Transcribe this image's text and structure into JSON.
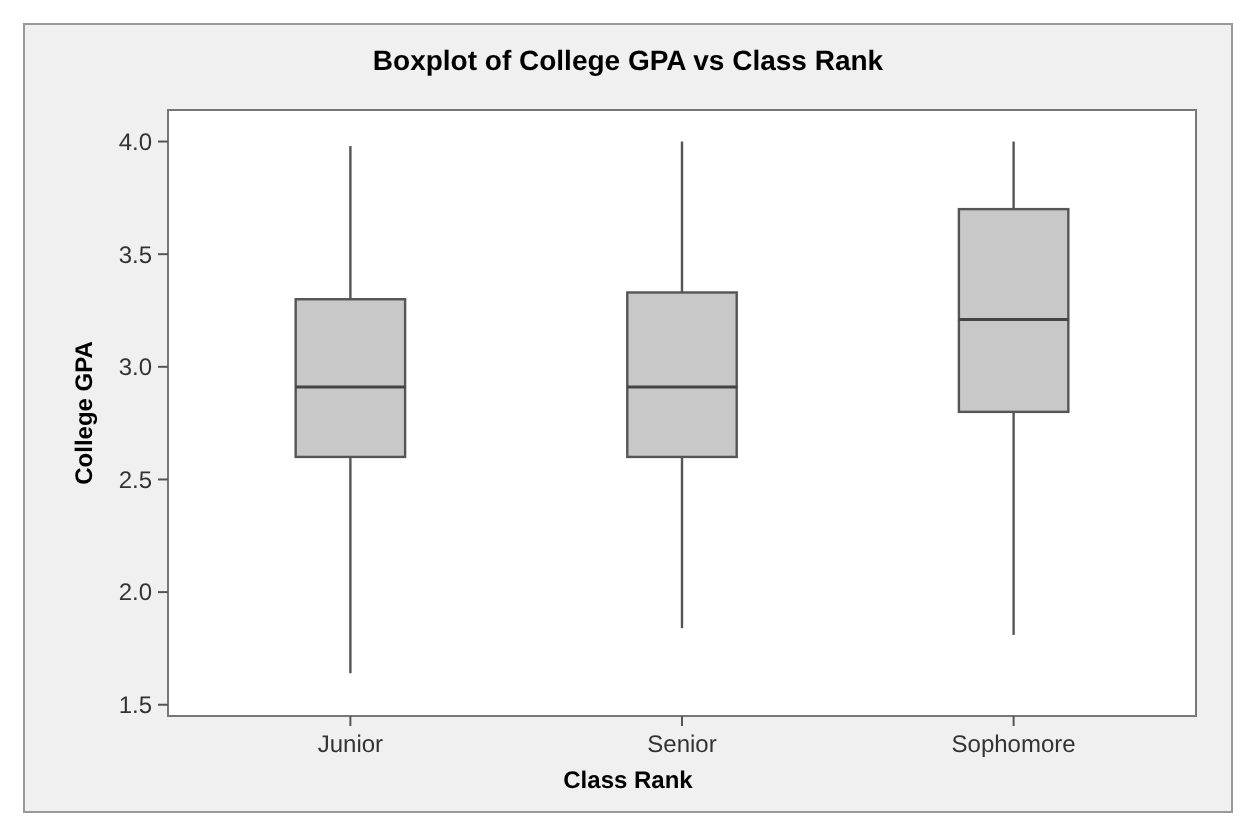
{
  "chart_data": {
    "type": "box",
    "title": "Boxplot of College GPA vs Class Rank",
    "xlabel": "Class Rank",
    "ylabel": "College GPA",
    "categories": [
      "Junior",
      "Senior",
      "Sophomore"
    ],
    "boxes": [
      {
        "low": 1.64,
        "q1": 2.6,
        "median": 2.91,
        "q3": 3.3,
        "high": 3.98
      },
      {
        "low": 1.84,
        "q1": 2.6,
        "median": 2.91,
        "q3": 3.33,
        "high": 4.0
      },
      {
        "low": 1.81,
        "q1": 2.8,
        "median": 3.21,
        "q3": 3.7,
        "high": 4.0
      }
    ],
    "color": "#c8c8c8",
    "ylim": [
      1.45,
      4.14
    ],
    "yticks": [
      1.5,
      {
        "value": 2,
        "label": "2.0"
      },
      2.5,
      {
        "value": 3,
        "label": "3.0"
      },
      3.5,
      {
        "value": 4,
        "label": "4.0"
      }
    ],
    "grid": false
  }
}
